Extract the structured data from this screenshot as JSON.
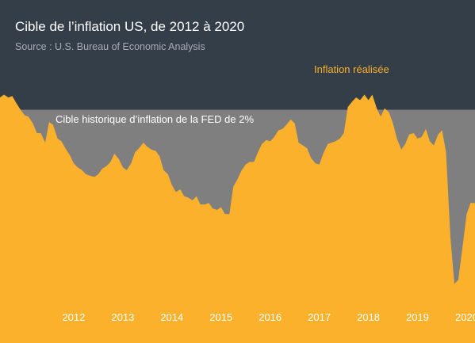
{
  "header": {
    "title": "Cible de l’inflation US, de 2012 à 2020",
    "source": "Source : U.S. Bureau of Economic Analysis"
  },
  "colors": {
    "header_bg": "#343e48",
    "target_band": "#7f7f7f",
    "inflation_fill": "#fbb12b",
    "annotation_accent": "#fbb12b",
    "text": "#ffffff"
  },
  "chart_data": {
    "type": "area",
    "title": "Cible de l’inflation US, de 2012 à 2020",
    "subtitle": "Source : U.S. Bureau of Economic Analysis",
    "xlabel": "",
    "ylabel": "",
    "x_ticks": [
      "2012",
      "2013",
      "2014",
      "2015",
      "2016",
      "2017",
      "2018",
      "2019",
      "2020"
    ],
    "ylim": [
      0.3,
      2.8
    ],
    "grid": false,
    "series": [
      {
        "name": "Inflation réalisée",
        "x": [
          2011.0,
          2011.08,
          2011.17,
          2011.25,
          2011.33,
          2011.42,
          2011.5,
          2011.58,
          2011.67,
          2011.75,
          2011.83,
          2011.92,
          2012.0,
          2012.08,
          2012.17,
          2012.25,
          2012.33,
          2012.42,
          2012.5,
          2012.58,
          2012.67,
          2012.75,
          2012.83,
          2012.92,
          2013.0,
          2013.08,
          2013.17,
          2013.25,
          2013.33,
          2013.42,
          2013.5,
          2013.58,
          2013.67,
          2013.75,
          2013.83,
          2013.92,
          2014.0,
          2014.08,
          2014.17,
          2014.25,
          2014.33,
          2014.42,
          2014.5,
          2014.58,
          2014.67,
          2014.75,
          2014.83,
          2014.92,
          2015.0,
          2015.08,
          2015.17,
          2015.25,
          2015.33,
          2015.42,
          2015.5,
          2015.58,
          2015.67,
          2015.75,
          2015.83,
          2015.92,
          2016.0,
          2016.08,
          2016.17,
          2016.25,
          2016.33,
          2016.42,
          2016.5,
          2016.58,
          2016.67,
          2016.75,
          2016.83,
          2016.92,
          2017.0,
          2017.08,
          2017.17,
          2017.25,
          2017.33,
          2017.42,
          2017.5,
          2017.58,
          2017.67,
          2017.75,
          2017.83,
          2017.92,
          2018.0,
          2018.08,
          2018.17,
          2018.25,
          2018.33,
          2018.42,
          2018.5,
          2018.58,
          2018.67,
          2018.75,
          2018.83,
          2018.92,
          2019.0,
          2019.08,
          2019.17,
          2019.25,
          2019.33,
          2019.42,
          2019.5,
          2019.58,
          2019.67,
          2019.75,
          2019.83,
          2019.92,
          2020.0,
          2020.08,
          2020.17,
          2020.25,
          2020.33,
          2020.42,
          2020.5,
          2020.58,
          2020.67
        ],
        "values": [
          2.09,
          2.11,
          2.09,
          2.1,
          2.05,
          2.0,
          1.96,
          1.95,
          1.9,
          1.83,
          1.83,
          1.76,
          1.91,
          1.89,
          1.79,
          1.77,
          1.72,
          1.67,
          1.61,
          1.58,
          1.56,
          1.53,
          1.52,
          1.51,
          1.53,
          1.57,
          1.59,
          1.62,
          1.68,
          1.64,
          1.58,
          1.56,
          1.61,
          1.69,
          1.72,
          1.76,
          1.73,
          1.71,
          1.7,
          1.66,
          1.56,
          1.53,
          1.45,
          1.4,
          1.42,
          1.37,
          1.36,
          1.34,
          1.37,
          1.31,
          1.31,
          1.32,
          1.28,
          1.27,
          1.29,
          1.24,
          1.24,
          1.44,
          1.49,
          1.56,
          1.6,
          1.62,
          1.62,
          1.69,
          1.75,
          1.78,
          1.77,
          1.8,
          1.85,
          1.86,
          1.89,
          1.93,
          1.9,
          1.76,
          1.74,
          1.72,
          1.65,
          1.61,
          1.6,
          1.68,
          1.75,
          1.76,
          1.77,
          1.79,
          1.83,
          2.02,
          2.06,
          2.09,
          2.07,
          2.11,
          2.07,
          2.11,
          2.01,
          1.95,
          2.01,
          1.98,
          1.9,
          1.79,
          1.71,
          1.75,
          1.82,
          1.83,
          1.79,
          1.8,
          1.86,
          1.77,
          1.74,
          1.82,
          1.85,
          1.69,
          1.07,
          0.73,
          0.76,
          1.01,
          1.24,
          1.32,
          1.32
        ]
      },
      {
        "name": "Cible historique d’inflation de la FED de 2%",
        "x": [
          2011.0,
          2020.67
        ],
        "values": [
          2.0,
          2.0
        ]
      }
    ],
    "annotations": [
      {
        "text": "Inflation réalisée",
        "color": "#fbb12b",
        "x": 2019.5,
        "y": 2.3
      },
      {
        "text": "Cible historique d’inflation de la FED de 2%",
        "color": "#ffffff",
        "x": 2013.3,
        "y": 1.92
      }
    ]
  }
}
